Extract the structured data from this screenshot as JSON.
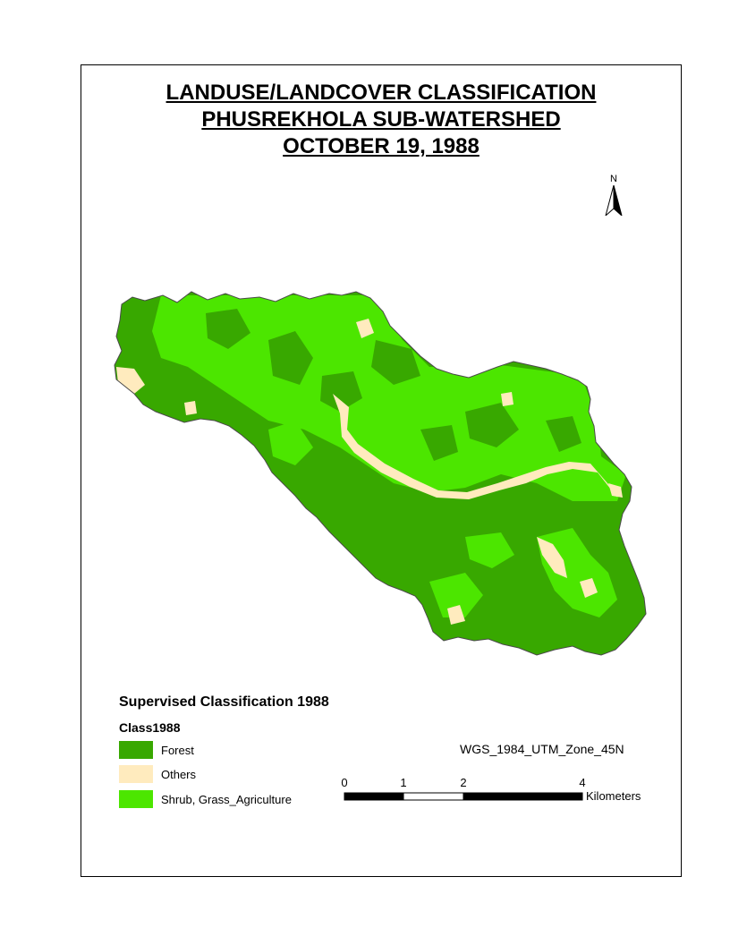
{
  "title": {
    "line1": "LANDUSE/LANDCOVER CLASSIFICATION",
    "line2": "PHUSREKHOLA SUB-WATERSHED",
    "line3": "OCTOBER 19, 1988"
  },
  "north_arrow": {
    "label": "N"
  },
  "legend": {
    "title": "Supervised Classification 1988",
    "field": "Class1988",
    "items": [
      {
        "label": "Forest",
        "color": "#38a800"
      },
      {
        "label": "Others",
        "color": "#ffebbe"
      },
      {
        "label": "Shrub, Grass_Agriculture",
        "color": "#4ce600"
      }
    ]
  },
  "projection": "WGS_1984_UTM_Zone_45N",
  "scale_bar": {
    "ticks": [
      "0",
      "1",
      "2",
      "4"
    ],
    "unit": "Kilometers"
  },
  "colors": {
    "forest": "#38a800",
    "others": "#ffebbe",
    "shrub": "#4ce600"
  }
}
